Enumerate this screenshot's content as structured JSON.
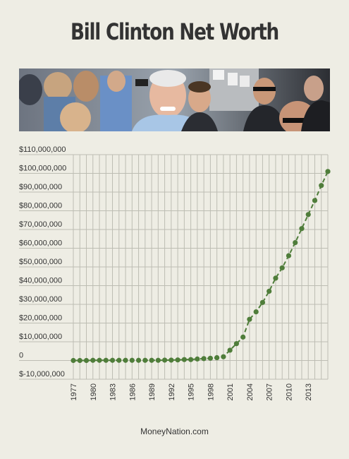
{
  "page": {
    "title": "Bill Clinton Net Worth",
    "footer": "MoneyNation.com"
  },
  "photo": {
    "alt": "Bill Clinton smiling in a crowd"
  },
  "colors": {
    "background": "#eeede4",
    "line": "#4f7d3a",
    "grid": "#bdbdb3",
    "text": "#333333"
  },
  "chart_data": {
    "type": "line",
    "title": "Bill Clinton Net Worth",
    "xlabel": "",
    "ylabel": "",
    "ylim": [
      -10000000,
      110000000
    ],
    "xlim": [
      1977,
      2016
    ],
    "grid": true,
    "y_ticks": [
      -10000000,
      0,
      10000000,
      20000000,
      30000000,
      40000000,
      50000000,
      60000000,
      70000000,
      80000000,
      90000000,
      100000000,
      110000000
    ],
    "y_tick_labels": [
      "$-10,000,000",
      "0",
      "$10,000,000",
      "$20,000,000",
      "$30,000,000",
      "$40,000,000",
      "$50,000,000",
      "$60,000,000",
      "$70,000,000",
      "$80,000,000",
      "$90,000,000",
      "$100,000,000",
      "$110,000,000"
    ],
    "x_tick_labels": [
      "1977",
      "1980",
      "1983",
      "1986",
      "1989",
      "1992",
      "1995",
      "1998",
      "2001",
      "2004",
      "2007",
      "2010",
      "2013"
    ],
    "x_ticks": [
      1977,
      1980,
      1983,
      1986,
      1989,
      1992,
      1995,
      1998,
      2001,
      2004,
      2007,
      2010,
      2013
    ],
    "series": [
      {
        "x": [
          1977,
          1978,
          1979,
          1980,
          1981,
          1982,
          1983,
          1984,
          1985,
          1986,
          1987,
          1988,
          1989,
          1990,
          1991,
          1992,
          1993,
          1994,
          1995,
          1996,
          1997,
          1998,
          1999,
          2000,
          2001,
          2002,
          2003,
          2004,
          2005,
          2006,
          2007,
          2008,
          2009,
          2010,
          2011,
          2012,
          2013,
          2014,
          2015,
          2016
        ],
        "values": [
          0,
          0,
          0,
          100000,
          100000,
          100000,
          100000,
          100000,
          100000,
          100000,
          100000,
          100000,
          100000,
          100000,
          200000,
          200000,
          300000,
          500000,
          500000,
          800000,
          1000000,
          1200000,
          1500000,
          2000000,
          5500000,
          9000000,
          12500000,
          22000000,
          26000000,
          31000000,
          37000000,
          44000000,
          49500000,
          56000000,
          63000000,
          70500000,
          78000000,
          85500000,
          93500000,
          101000000
        ]
      }
    ]
  }
}
